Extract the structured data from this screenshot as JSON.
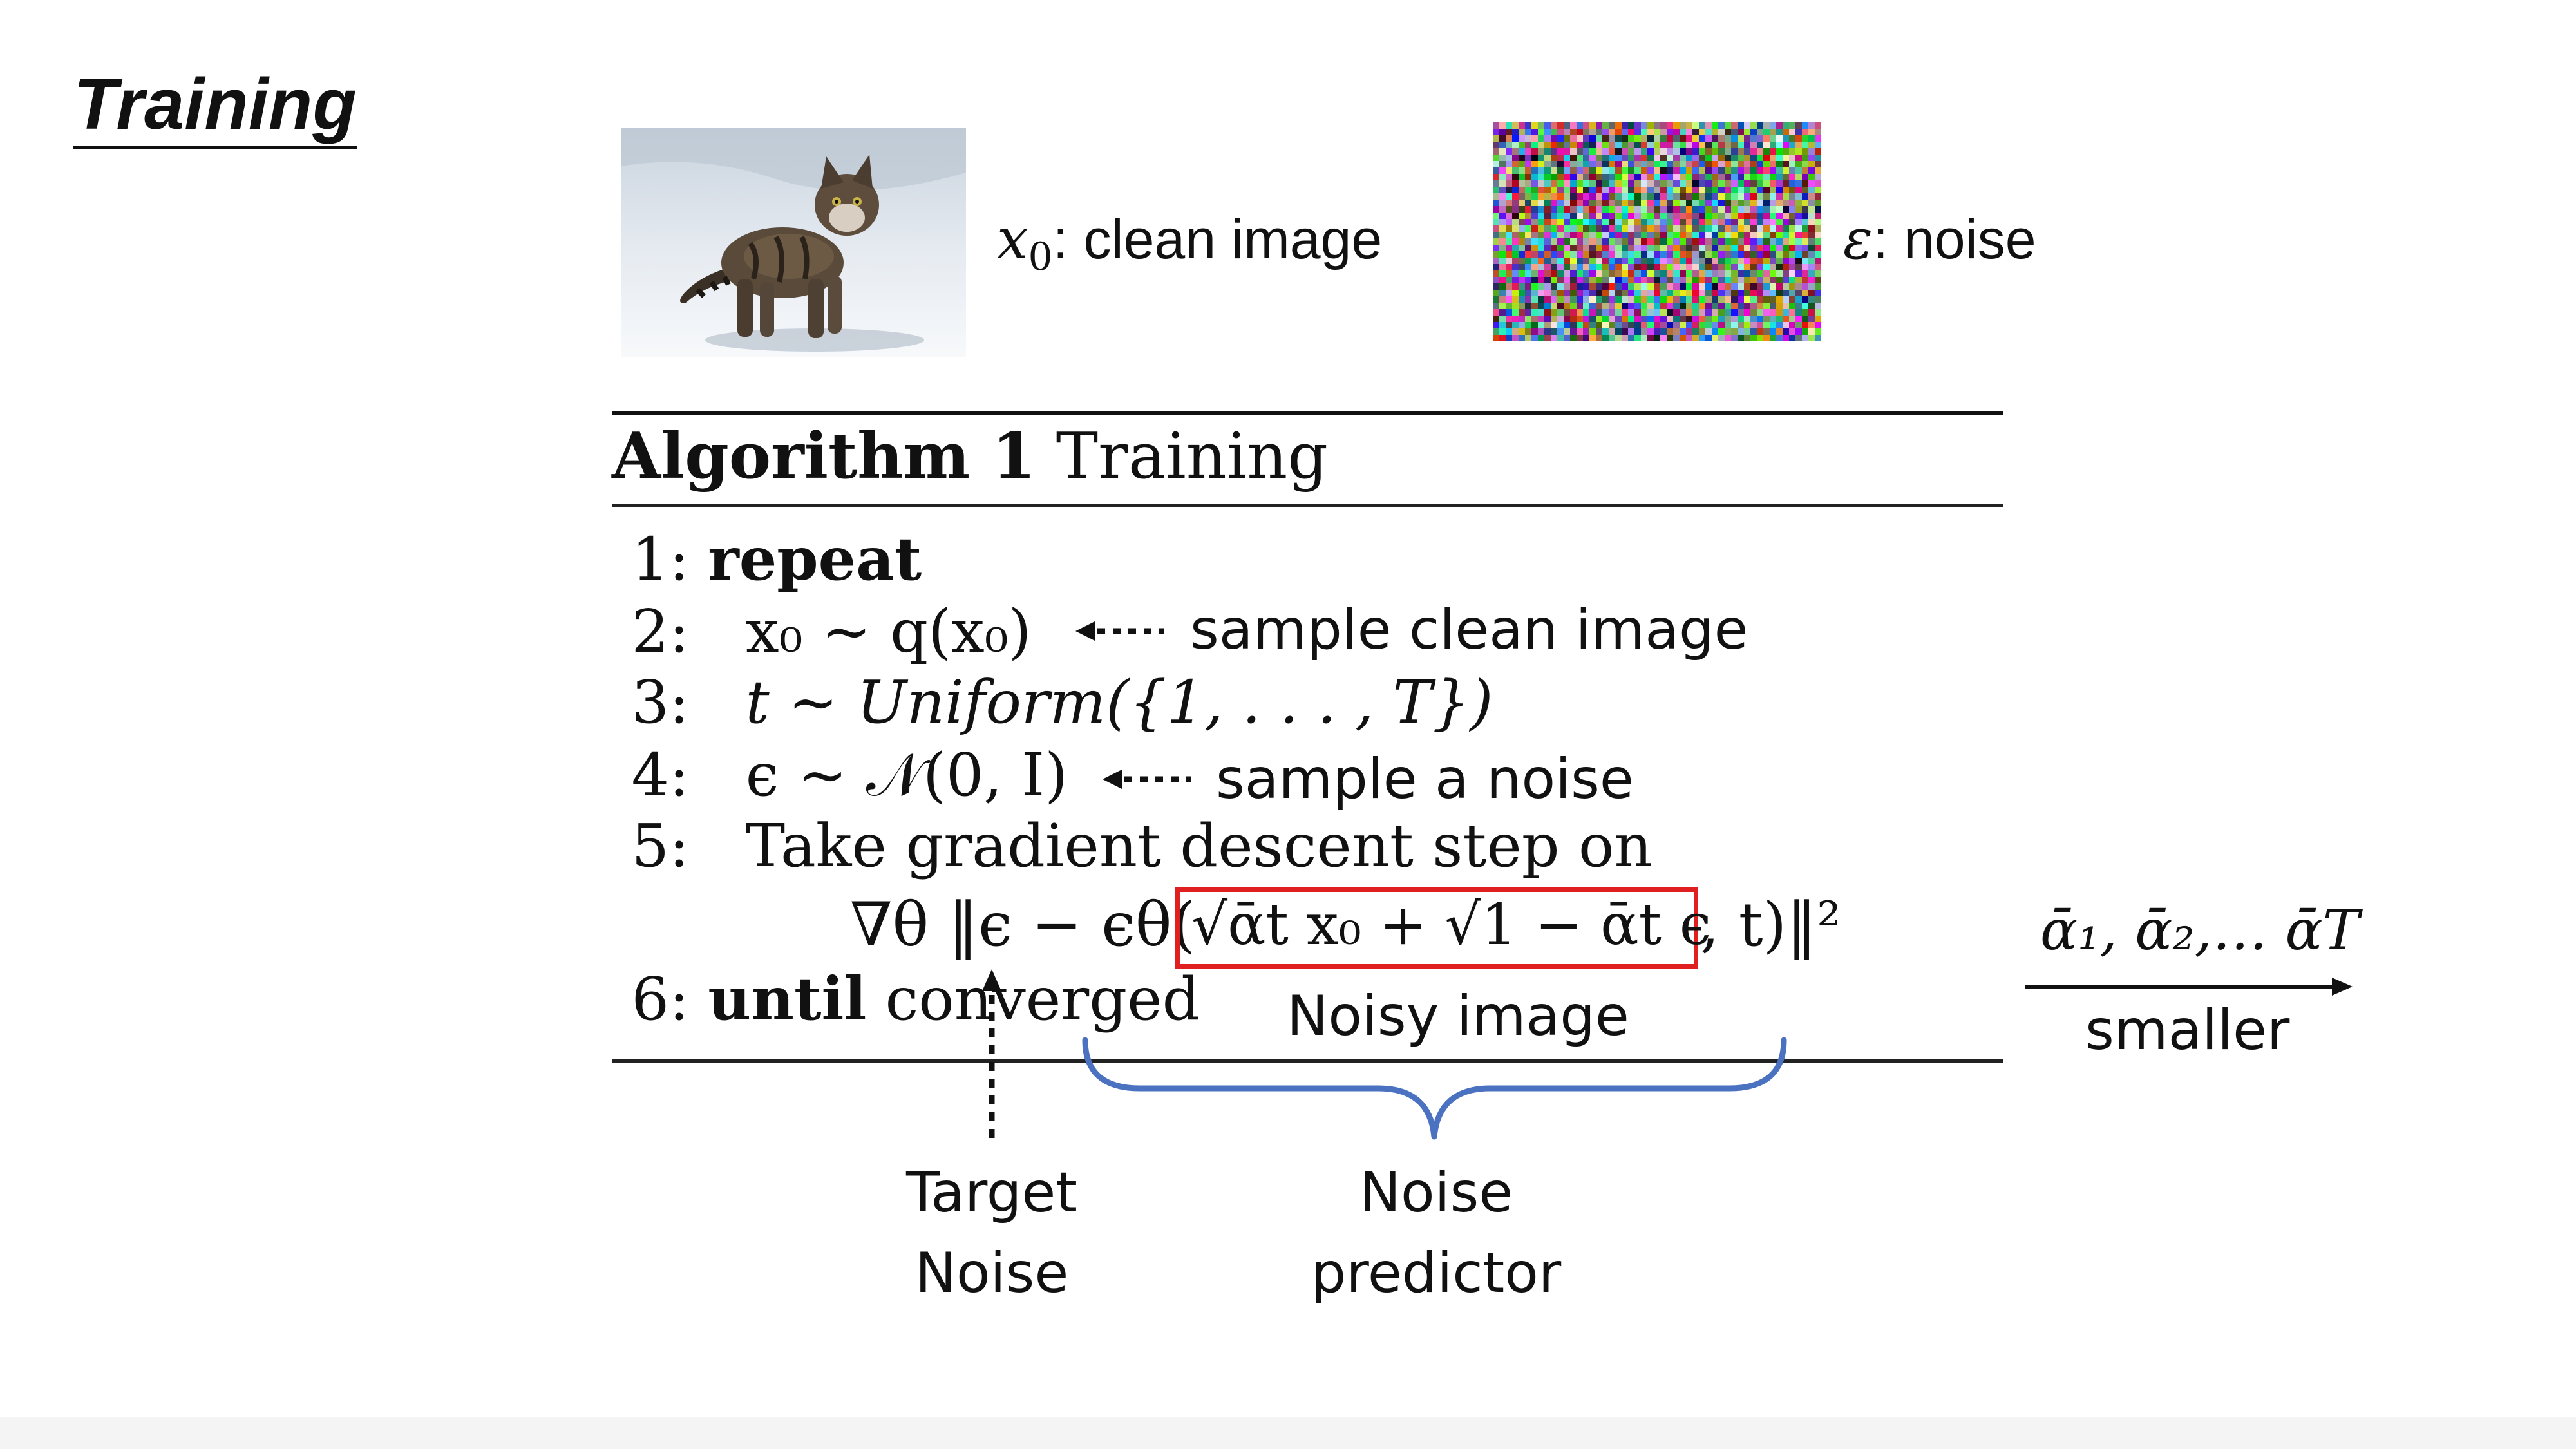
{
  "slide_title": "Training",
  "clean_image": {
    "symbol": "x",
    "subscript": "0",
    "label": ": clean image"
  },
  "noise_image": {
    "symbol": "ε",
    "label": ": noise"
  },
  "algorithm": {
    "heading_bold": "Algorithm 1",
    "heading_rest": " Training",
    "lines": [
      {
        "num": "1:",
        "bold": "repeat",
        "text": ""
      },
      {
        "num": "2:",
        "bold": "",
        "text": "x₀ ∼ q(x₀)"
      },
      {
        "num": "3:",
        "bold": "",
        "text": "t ∼ Uniform({1, . . . , T})"
      },
      {
        "num": "4:",
        "bold": "",
        "text": "ϵ ∼ 𝒩(0, I)"
      },
      {
        "num": "5:",
        "bold": "",
        "text": "Take gradient descent step on"
      },
      {
        "num": "6:",
        "bold": "until",
        "text": " converged"
      }
    ],
    "formula_left": "∇θ ‖ϵ − ϵθ(",
    "formula_boxed": "√ᾱt x₀ + √1 − ᾱt ϵ",
    "formula_right": ", t)‖²"
  },
  "annotations": {
    "sample_clean": "sample clean image",
    "sample_noise": "sample a noise",
    "noisy_image": "Noisy image",
    "target_noise": [
      "Target",
      "Noise"
    ],
    "noise_predictor": [
      "Noise",
      "predictor"
    ],
    "alpha_sequence": "ᾱ₁, ᾱ₂,… ᾱT",
    "smaller": "smaller"
  },
  "colors": {
    "highlight_box": "#e02020",
    "brace": "#4a72c0",
    "text": "#111111"
  }
}
